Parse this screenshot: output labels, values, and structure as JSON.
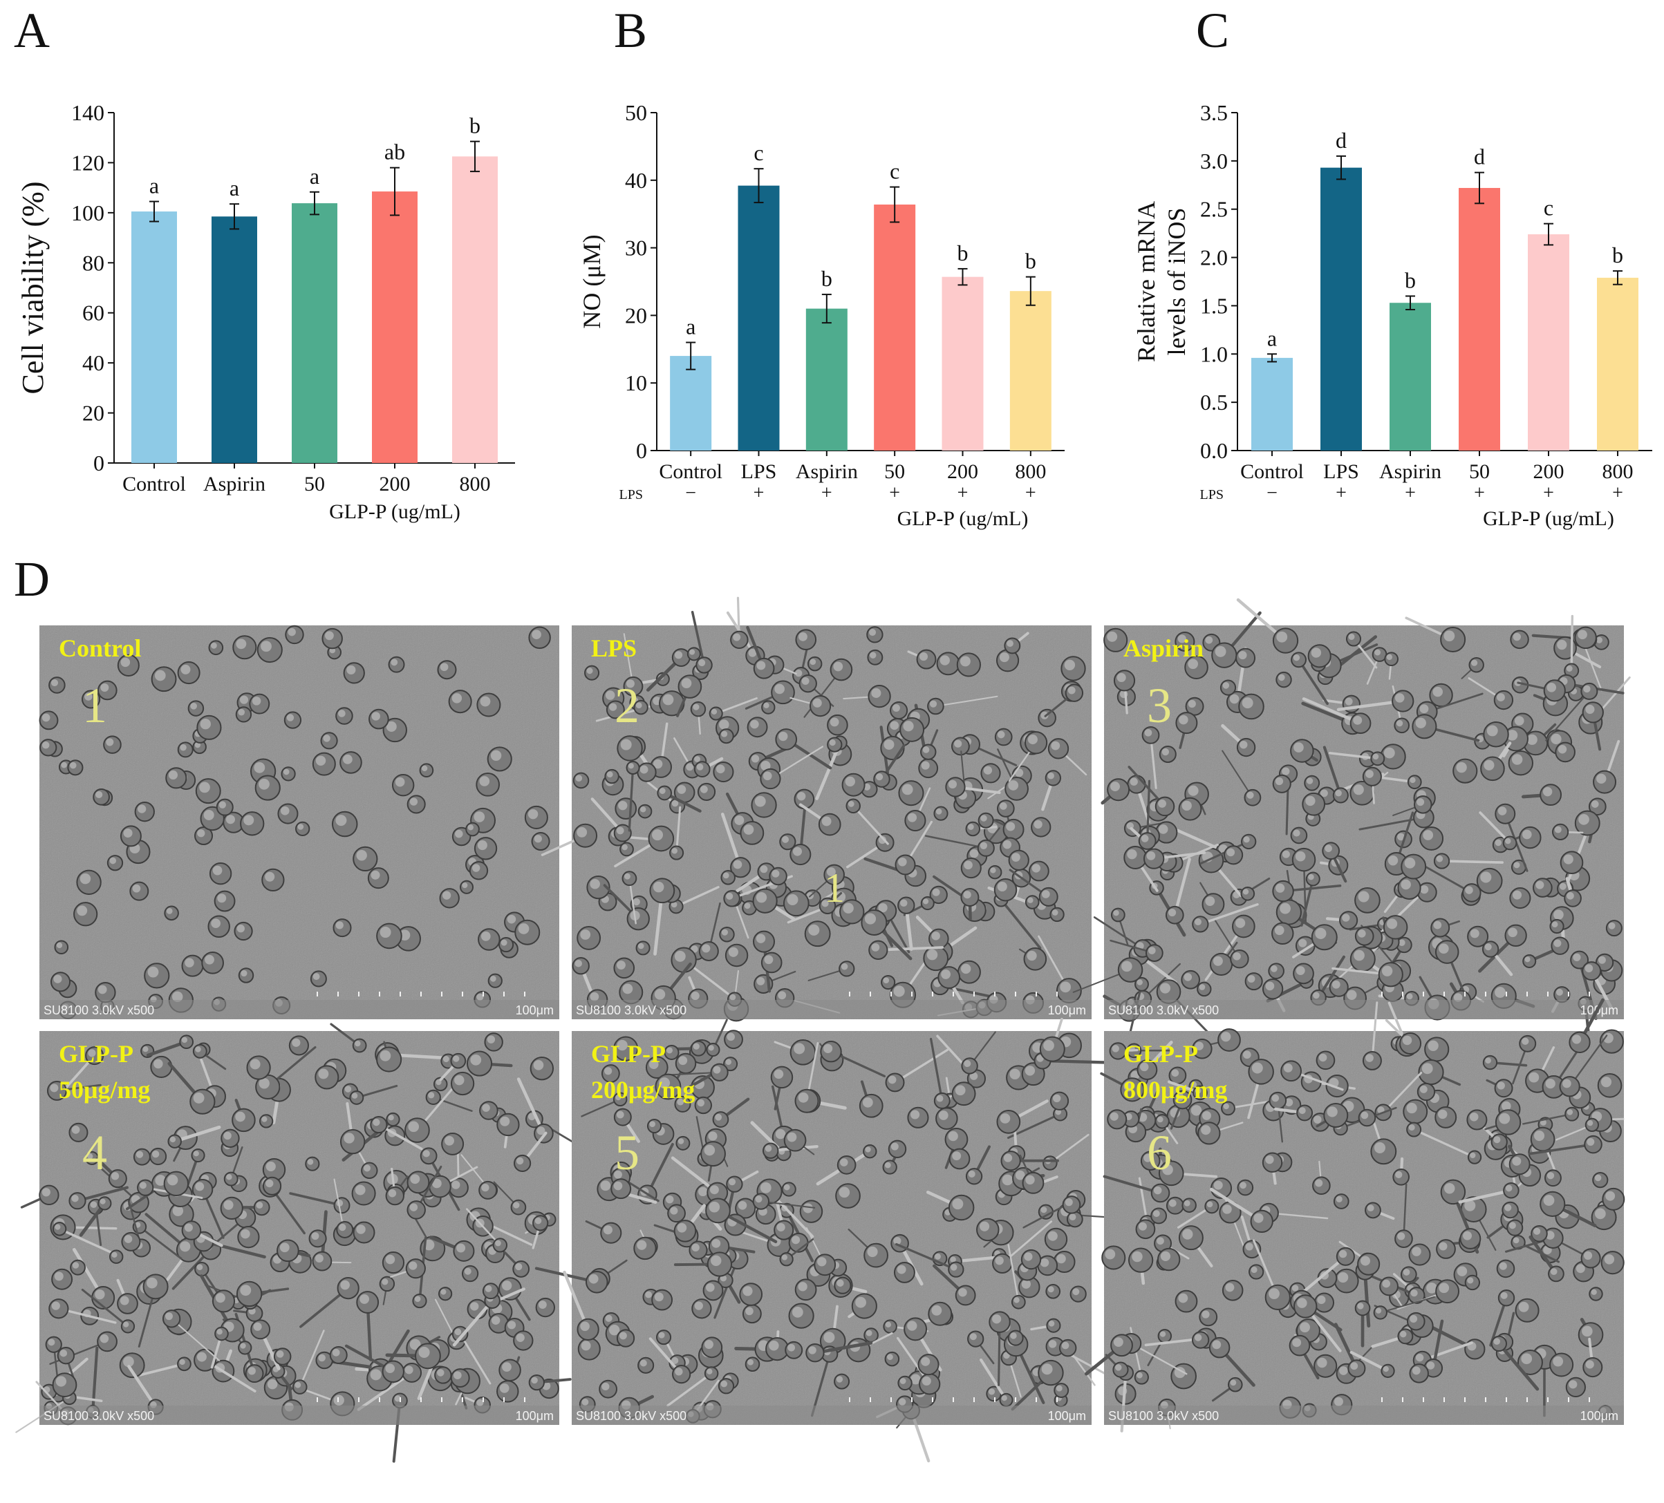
{
  "panels": {
    "a": "A",
    "b": "B",
    "c": "C",
    "d": "D"
  },
  "colors": {
    "control": "#8ECAE6",
    "dark_teal": "#136586",
    "green": "#4FAC8E",
    "red": "#FA766D",
    "pink": "#FDCACB",
    "yellow": "#FCDF93",
    "sem_background": "#8f8f8f",
    "sem_label": "#f2f215",
    "sem_number": "#e6e686"
  },
  "chart_data": [
    {
      "type": "bar",
      "panel": "A",
      "categories": [
        "Control",
        "Aspirin",
        "50",
        "200",
        "800"
      ],
      "values": [
        100.5,
        98.5,
        103.8,
        108.5,
        122.5
      ],
      "errors": [
        4.0,
        5.0,
        4.5,
        9.5,
        6.0
      ],
      "significance": [
        "a",
        "a",
        "a",
        "ab",
        "b"
      ],
      "bar_colors": [
        "#8ECAE6",
        "#136586",
        "#4FAC8E",
        "#FA766D",
        "#FDCACB"
      ],
      "ylabel": "Cell viability (%)",
      "ylim": [
        0,
        140
      ],
      "yticks": [
        "0",
        "20",
        "40",
        "60",
        "80",
        "100",
        "120",
        "140"
      ],
      "group_label": "GLP-P (ug/mL)"
    },
    {
      "type": "bar",
      "panel": "B",
      "categories": [
        "Control",
        "LPS",
        "Aspirin",
        "50",
        "200",
        "800"
      ],
      "values": [
        14.0,
        39.2,
        21.0,
        36.4,
        25.7,
        23.6
      ],
      "errors": [
        2.0,
        2.5,
        2.1,
        2.6,
        1.2,
        2.1
      ],
      "significance": [
        "a",
        "c",
        "b",
        "c",
        "b",
        "b"
      ],
      "bar_colors": [
        "#8ECAE6",
        "#136586",
        "#4FAC8E",
        "#FA766D",
        "#FDCACB",
        "#FCDF93"
      ],
      "lps_label": "LPS",
      "lps": [
        "−",
        "+",
        "+",
        "+",
        "+",
        "+"
      ],
      "ylabel": "NO (μM)",
      "ylim": [
        0,
        50
      ],
      "yticks": [
        "0",
        "10",
        "20",
        "30",
        "40",
        "50"
      ],
      "group_label": "GLP-P (ug/mL)"
    },
    {
      "type": "bar",
      "panel": "C",
      "categories": [
        "Control",
        "LPS",
        "Aspirin",
        "50",
        "200",
        "800"
      ],
      "values": [
        0.96,
        2.93,
        1.53,
        2.72,
        2.24,
        1.79
      ],
      "errors": [
        0.04,
        0.12,
        0.07,
        0.16,
        0.11,
        0.07
      ],
      "significance": [
        "a",
        "d",
        "b",
        "d",
        "c",
        "b"
      ],
      "bar_colors": [
        "#8ECAE6",
        "#136586",
        "#4FAC8E",
        "#FA766D",
        "#FDCACB",
        "#FCDF93"
      ],
      "lps_label": "LPS",
      "lps": [
        "−",
        "+",
        "+",
        "+",
        "+",
        "+"
      ],
      "ylabel_lines": [
        "Relative mRNA",
        "levels of iNOS"
      ],
      "ylim": [
        0,
        3.5
      ],
      "yticks": [
        "0.0",
        "0.5",
        "1.0",
        "1.5",
        "2.0",
        "2.5",
        "3.0",
        "3.5"
      ],
      "group_label": "GLP-P (ug/mL)"
    }
  ],
  "sem_images": [
    {
      "label": [
        "Control"
      ],
      "number": "1",
      "footer": "SU8100 3.0kV x500",
      "scale": "100μm"
    },
    {
      "label": [
        "LPS"
      ],
      "number": "2",
      "inner_number": "1",
      "footer": "SU8100 3.0kV x500",
      "scale": "100μm"
    },
    {
      "label": [
        "Aspirin"
      ],
      "number": "3",
      "footer": "SU8100 3.0kV x500",
      "scale": "100μm"
    },
    {
      "label": [
        "GLP-P",
        "50μg/mg"
      ],
      "number": "4",
      "footer": "SU8100 3.0kV x500",
      "scale": "100μm"
    },
    {
      "label": [
        "GLP-P",
        "200μg/mg"
      ],
      "number": "5",
      "footer": "SU8100 3.0kV x500",
      "scale": "100μm"
    },
    {
      "label": [
        "GLP-P",
        "800μg/mg"
      ],
      "number": "6",
      "footer": "SU8100 3.0kV x500",
      "scale": "100μm"
    }
  ]
}
